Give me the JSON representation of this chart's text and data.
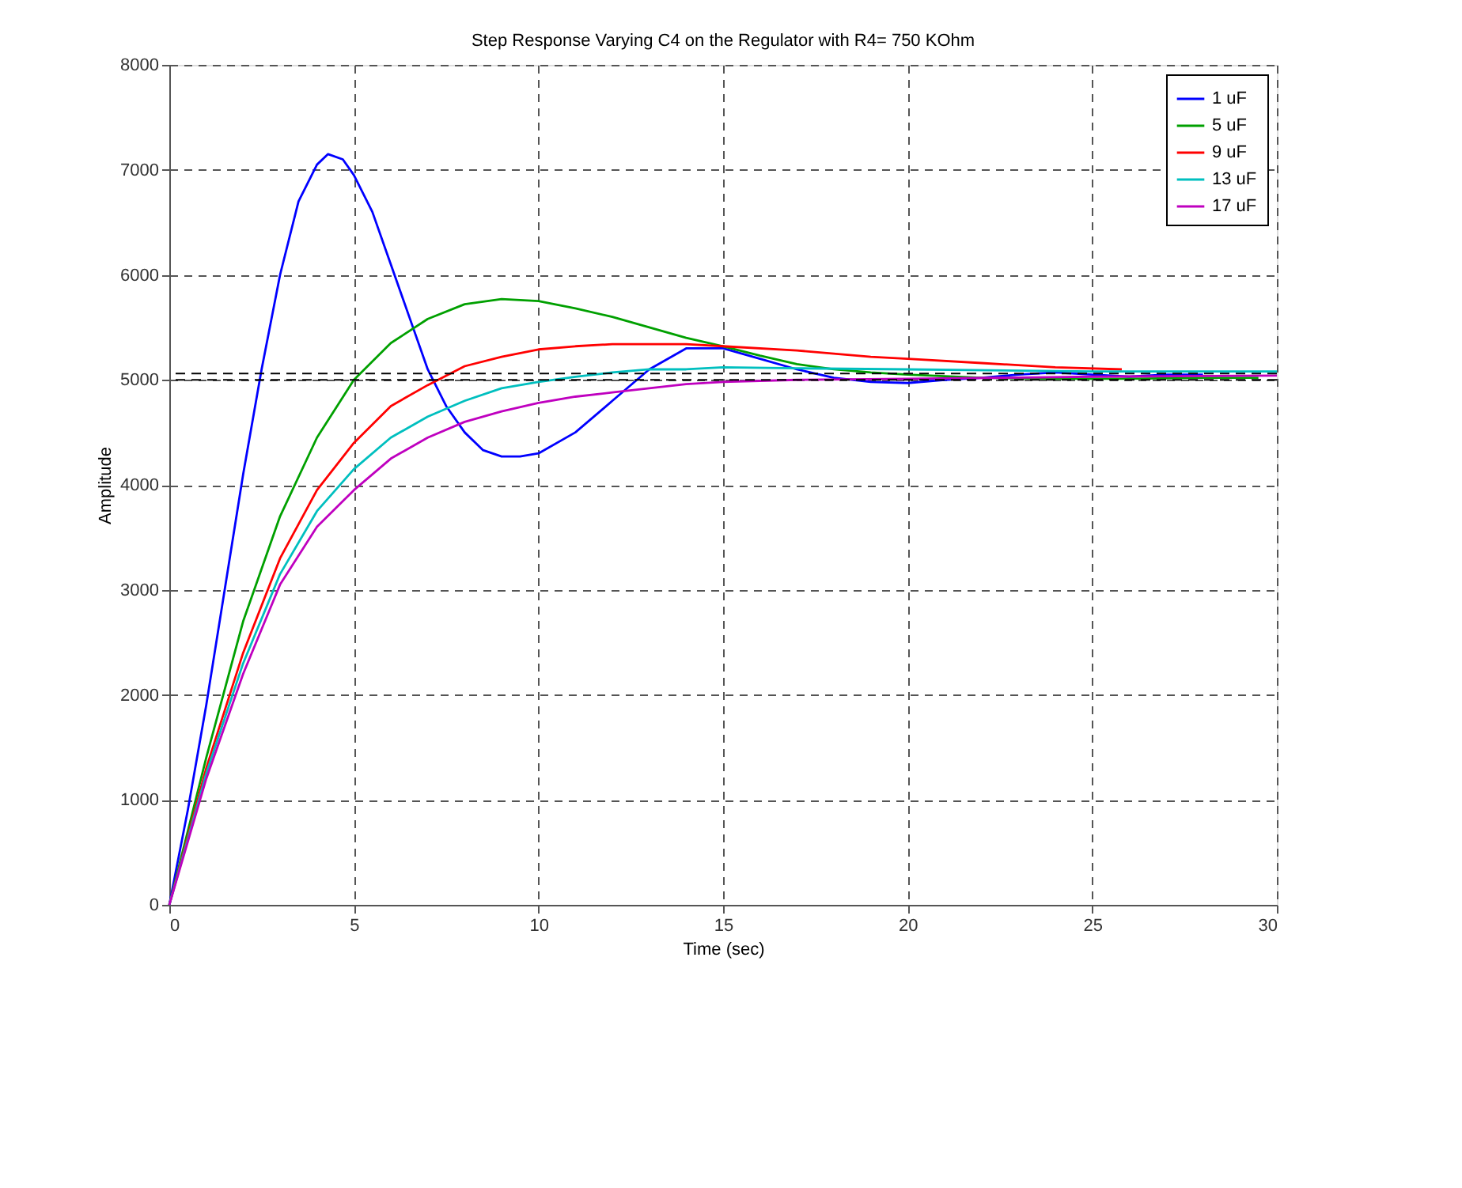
{
  "chart_data": {
    "type": "line",
    "title": "Step Response Varying C4 on the Regulator with R4= 750 KOhm",
    "xlabel": "Time (sec)",
    "ylabel": "Amplitude",
    "xlim": [
      0,
      30
    ],
    "xticks": [
      0,
      5,
      10,
      15,
      20,
      25,
      30
    ],
    "ylim": [
      0,
      8000
    ],
    "yticks": [
      0,
      1000,
      2000,
      3000,
      4000,
      5000,
      6000,
      7000,
      8000
    ],
    "grid": true,
    "legend": "top right",
    "line_style": "solid",
    "marker": "none",
    "ref_lines": [
      {
        "axis": "y",
        "value": 5000,
        "color": "#000000",
        "line_style": "dashed"
      },
      {
        "axis": "y",
        "value": 5060,
        "color": "#000000",
        "line_style": "dashed"
      }
    ],
    "series": [
      {
        "name": "1 uF",
        "color": "#0000ff",
        "x": [
          0,
          0.5,
          1,
          1.5,
          2,
          2.5,
          3,
          3.5,
          4,
          4.3,
          4.7,
          5,
          5.5,
          6,
          6.5,
          7,
          7.5,
          8,
          8.5,
          9,
          9.5,
          10,
          11,
          12,
          13,
          14,
          15,
          16,
          17,
          18,
          19,
          20,
          21,
          22,
          23,
          24,
          25,
          26,
          27,
          28
        ],
        "values": [
          0,
          900,
          1900,
          3000,
          4100,
          5100,
          6000,
          6700,
          7050,
          7150,
          7100,
          6950,
          6600,
          6100,
          5600,
          5100,
          4750,
          4500,
          4330,
          4270,
          4270,
          4300,
          4500,
          4800,
          5100,
          5300,
          5300,
          5200,
          5100,
          5020,
          4980,
          4970,
          5000,
          5020,
          5050,
          5070,
          5050,
          5030,
          5050,
          5050
        ]
      },
      {
        "name": "5 uF",
        "color": "#00a000",
        "x": [
          0,
          1,
          2,
          3,
          4,
          5,
          6,
          7,
          8,
          9,
          10,
          11,
          12,
          13,
          14,
          15,
          16,
          17,
          18,
          19,
          20,
          22,
          24,
          26,
          28,
          29.5
        ],
        "values": [
          0,
          1400,
          2700,
          3700,
          4450,
          5000,
          5350,
          5580,
          5720,
          5770,
          5750,
          5680,
          5600,
          5500,
          5400,
          5320,
          5230,
          5150,
          5100,
          5070,
          5050,
          5020,
          5010,
          5010,
          5020,
          5020
        ]
      },
      {
        "name": "9 uF",
        "color": "#ff0000",
        "x": [
          0,
          1,
          2,
          3,
          4,
          5,
          6,
          7,
          8,
          9,
          10,
          11,
          12,
          13,
          14,
          15,
          17,
          19,
          20,
          22,
          24,
          25.8
        ],
        "values": [
          0,
          1300,
          2400,
          3300,
          3950,
          4400,
          4750,
          4950,
          5130,
          5220,
          5290,
          5320,
          5340,
          5340,
          5340,
          5320,
          5280,
          5220,
          5200,
          5160,
          5120,
          5100
        ]
      },
      {
        "name": "13 uF",
        "color": "#00bfbf",
        "x": [
          0,
          1,
          2,
          3,
          4,
          5,
          6,
          7,
          8,
          9,
          10,
          11,
          12,
          13,
          14,
          15,
          17,
          20,
          25,
          30
        ],
        "values": [
          0,
          1250,
          2300,
          3150,
          3750,
          4150,
          4450,
          4650,
          4800,
          4920,
          4980,
          5030,
          5070,
          5100,
          5100,
          5120,
          5110,
          5100,
          5080,
          5080
        ]
      },
      {
        "name": "17 uF",
        "color": "#bf00bf",
        "x": [
          0,
          1,
          2,
          3,
          4,
          5,
          6,
          7,
          8,
          9,
          10,
          11,
          12,
          13,
          14,
          15,
          17,
          20,
          25,
          30
        ],
        "values": [
          0,
          1200,
          2200,
          3050,
          3600,
          3950,
          4250,
          4450,
          4600,
          4700,
          4780,
          4840,
          4880,
          4920,
          4960,
          4980,
          5000,
          5010,
          5030,
          5040
        ]
      }
    ]
  }
}
